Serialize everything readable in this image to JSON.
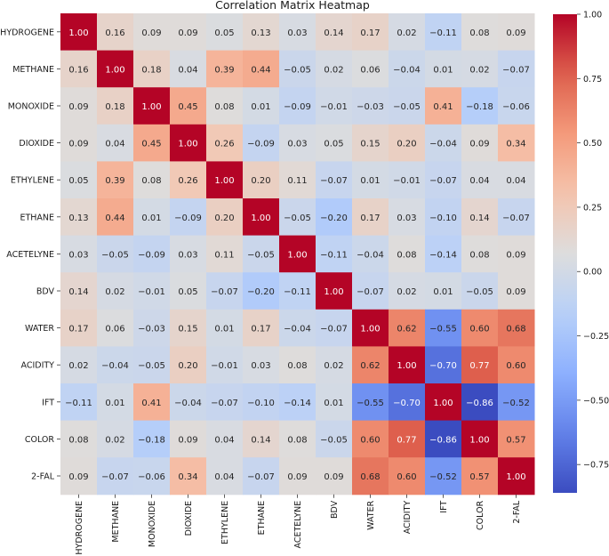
{
  "chart_data": {
    "type": "heatmap",
    "title": "Correlation Matrix Heatmap",
    "labels": [
      "HYDROGENE",
      "METHANE",
      "MONOXIDE",
      "DIOXIDE",
      "ETHYLENE",
      "ETHANE",
      "ACETELYNE",
      "BDV",
      "WATER",
      "ACIDITY",
      "IFT",
      "COLOR",
      "2-FAL"
    ],
    "matrix": [
      [
        1.0,
        0.16,
        0.09,
        0.09,
        0.05,
        0.13,
        0.03,
        0.14,
        0.17,
        0.02,
        -0.11,
        0.08,
        0.09
      ],
      [
        0.16,
        1.0,
        0.18,
        0.04,
        0.39,
        0.44,
        -0.05,
        0.02,
        0.06,
        -0.04,
        0.01,
        0.02,
        -0.07
      ],
      [
        0.09,
        0.18,
        1.0,
        0.45,
        0.08,
        0.01,
        -0.09,
        -0.01,
        -0.03,
        -0.05,
        0.41,
        -0.18,
        -0.06
      ],
      [
        0.09,
        0.04,
        0.45,
        1.0,
        0.26,
        -0.09,
        0.03,
        0.05,
        0.15,
        0.2,
        -0.04,
        0.09,
        0.34
      ],
      [
        0.05,
        0.39,
        0.08,
        0.26,
        1.0,
        0.2,
        0.11,
        -0.07,
        0.01,
        -0.01,
        -0.07,
        0.04,
        0.04
      ],
      [
        0.13,
        0.44,
        0.01,
        -0.09,
        0.2,
        1.0,
        -0.05,
        -0.2,
        0.17,
        0.03,
        -0.1,
        0.14,
        -0.07
      ],
      [
        0.03,
        -0.05,
        -0.09,
        0.03,
        0.11,
        -0.05,
        1.0,
        -0.11,
        -0.04,
        0.08,
        -0.14,
        0.08,
        0.09
      ],
      [
        0.14,
        0.02,
        -0.01,
        0.05,
        -0.07,
        -0.2,
        -0.11,
        1.0,
        -0.07,
        0.02,
        0.01,
        -0.05,
        0.09
      ],
      [
        0.17,
        0.06,
        -0.03,
        0.15,
        0.01,
        0.17,
        -0.04,
        -0.07,
        1.0,
        0.62,
        -0.55,
        0.6,
        0.68
      ],
      [
        0.02,
        -0.04,
        -0.05,
        0.2,
        -0.01,
        0.03,
        0.08,
        0.02,
        0.62,
        1.0,
        -0.7,
        0.77,
        0.6
      ],
      [
        -0.11,
        0.01,
        0.41,
        -0.04,
        -0.07,
        -0.1,
        -0.14,
        0.01,
        -0.55,
        -0.7,
        1.0,
        -0.86,
        -0.52
      ],
      [
        0.08,
        0.02,
        -0.18,
        0.09,
        0.04,
        0.14,
        0.08,
        -0.05,
        0.6,
        0.77,
        -0.86,
        1.0,
        0.57
      ],
      [
        0.09,
        -0.07,
        -0.06,
        0.34,
        0.04,
        -0.07,
        0.09,
        0.09,
        0.68,
        0.6,
        -0.52,
        0.57,
        1.0
      ]
    ],
    "colormap": "coolwarm",
    "vmin": -0.86,
    "vmax": 1.0,
    "colorbar_ticks": [
      "1.00",
      "0.75",
      "0.50",
      "0.25",
      "0.00",
      "−0.25",
      "−0.50",
      "−0.75"
    ],
    "colorbar_tick_values": [
      1.0,
      0.75,
      0.5,
      0.25,
      0.0,
      -0.25,
      -0.5,
      -0.75
    ],
    "value_format": "2 decimals",
    "annotation_colors": {
      "light": "#ffffff",
      "dark": "#262626"
    }
  }
}
